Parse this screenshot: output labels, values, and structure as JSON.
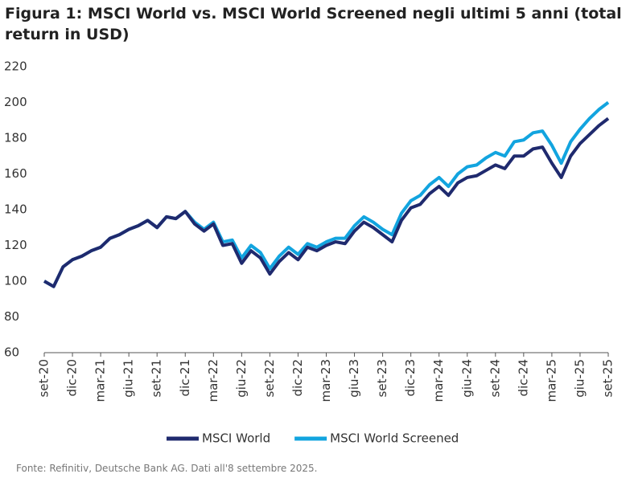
{
  "chart_data": {
    "type": "line",
    "title": "Figura 1: MSCI World vs. MSCI World Screened negli ultimi 5 anni (total return in USD)",
    "source": "Fonte: Refinitiv, Deutsche Bank AG. Dati all'8 settembre 2025.",
    "categories": [
      "set-20",
      null,
      null,
      "dic-20",
      null,
      null,
      "mar-21",
      null,
      null,
      "giu-21",
      null,
      null,
      "set-21",
      null,
      null,
      "dic-21",
      null,
      null,
      "mar-22",
      null,
      null,
      "giu-22",
      null,
      null,
      "set-22",
      null,
      null,
      "dic-22",
      null,
      null,
      "mar-23",
      null,
      null,
      "giu-23",
      null,
      null,
      "set-23",
      null,
      null,
      "dic-23",
      null,
      null,
      "mar-24",
      null,
      null,
      "giu-24",
      null,
      null,
      "set-24",
      null,
      null,
      "dic-24",
      null,
      null,
      "mar-25",
      null,
      null,
      "giu-25",
      null,
      null,
      "set-25"
    ],
    "series": [
      {
        "name": "MSCI World Screened",
        "color": "#12a4df",
        "values": [
          100,
          97,
          108,
          112,
          114,
          117,
          119,
          124,
          126,
          129,
          131,
          134,
          130,
          136,
          135,
          139,
          133,
          129,
          133,
          122,
          123,
          113,
          120,
          116,
          107,
          114,
          119,
          115,
          121,
          119,
          122,
          124,
          124,
          131,
          136,
          133,
          129,
          126,
          138,
          145,
          148,
          154,
          158,
          153,
          160,
          164,
          165,
          169,
          172,
          170,
          178,
          179,
          183,
          184,
          176,
          166,
          178,
          185,
          191,
          196,
          200
        ]
      },
      {
        "name": "MSCI World",
        "color": "#1f2a6e",
        "values": [
          100,
          97,
          108,
          112,
          114,
          117,
          119,
          124,
          126,
          129,
          131,
          134,
          130,
          136,
          135,
          139,
          132,
          128,
          132,
          120,
          121,
          110,
          117,
          113,
          104,
          111,
          116,
          112,
          119,
          117,
          120,
          122,
          121,
          128,
          133,
          130,
          126,
          122,
          134,
          141,
          143,
          149,
          153,
          148,
          155,
          158,
          159,
          162,
          165,
          163,
          170,
          170,
          174,
          175,
          166,
          158,
          170,
          177,
          182,
          187,
          191
        ]
      }
    ],
    "ylim": [
      60,
      220
    ],
    "yticks": [
      60,
      80,
      100,
      120,
      140,
      160,
      180,
      200,
      220
    ]
  }
}
